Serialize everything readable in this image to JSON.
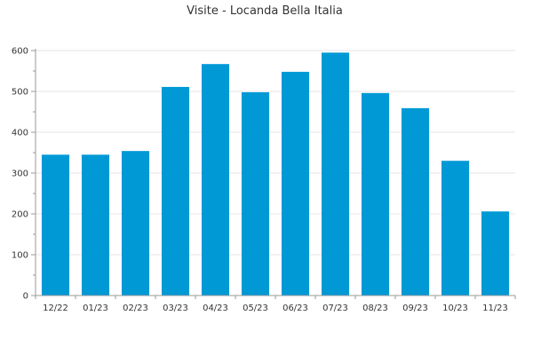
{
  "chart_data": {
    "type": "bar",
    "title": "Visite - Locanda Bella Italia",
    "xlabel": "",
    "ylabel": "",
    "categories": [
      "12/22",
      "01/23",
      "02/23",
      "03/23",
      "04/23",
      "05/23",
      "06/23",
      "07/23",
      "08/23",
      "09/23",
      "10/23",
      "11/23"
    ],
    "values": [
      345,
      345,
      354,
      511,
      567,
      498,
      548,
      595,
      496,
      459,
      330,
      206
    ],
    "ylim": [
      0,
      600
    ],
    "yticks": [
      0,
      100,
      200,
      300,
      400,
      500,
      600
    ],
    "grid": true,
    "legend": "none",
    "bar_color": "#0099d6"
  }
}
